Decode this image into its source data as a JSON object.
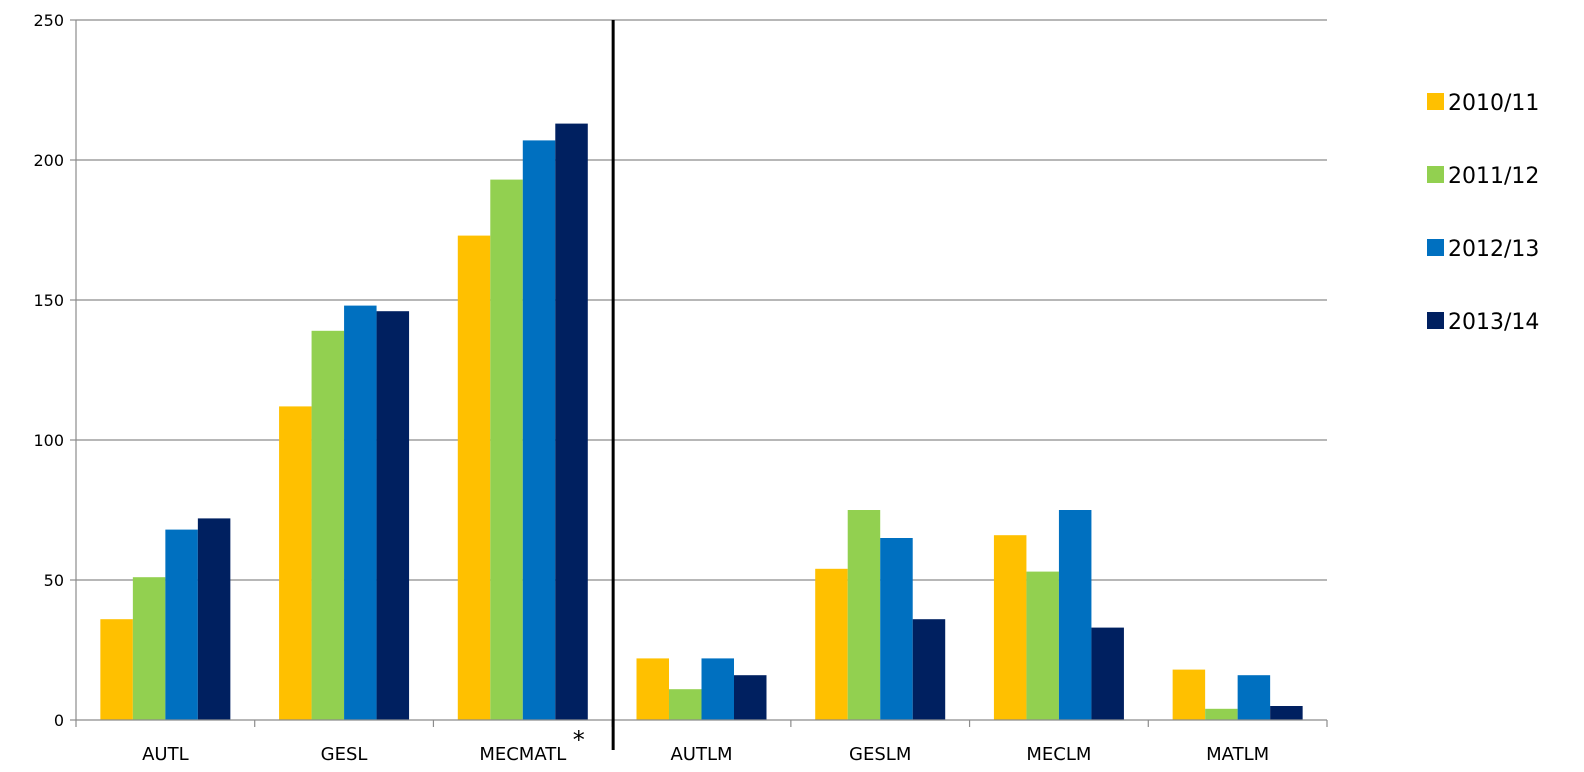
{
  "chart_data": {
    "type": "bar",
    "title": "",
    "xlabel": "",
    "ylabel": "",
    "ylim": [
      0,
      250
    ],
    "yticks": [
      0,
      50,
      100,
      150,
      200,
      250
    ],
    "grid": true,
    "legend_position": "right",
    "categories": [
      "AUTL",
      "GESL",
      "MECMATL",
      "AUTLM",
      "GESLM",
      "MECLM",
      "MATLM"
    ],
    "annotation": "*",
    "annotation_category": "MECMATL",
    "separator_after_category": "MECMATL",
    "series": [
      {
        "name": "2010/11",
        "color": "#FFC000",
        "values": [
          36,
          112,
          173,
          22,
          54,
          66,
          18
        ]
      },
      {
        "name": "2011/12",
        "color": "#92D050",
        "values": [
          51,
          139,
          193,
          11,
          75,
          53,
          4
        ]
      },
      {
        "name": "2012/13",
        "color": "#0070C0",
        "values": [
          68,
          148,
          207,
          22,
          65,
          75,
          16
        ]
      },
      {
        "name": "2013/14",
        "color": "#002060",
        "values": [
          72,
          146,
          213,
          16,
          36,
          33,
          5
        ]
      }
    ]
  }
}
